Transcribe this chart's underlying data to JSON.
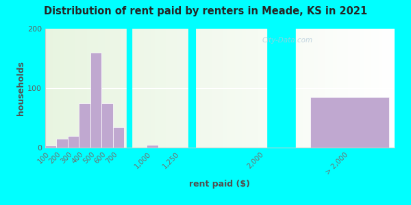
{
  "title": "Distribution of rent paid by renters in Meade, KS in 2021",
  "xlabel": "rent paid ($)",
  "ylabel": "households",
  "background_outer": "#00FFFF",
  "bar_color": "#c0a8d0",
  "ylim": [
    0,
    200
  ],
  "yticks": [
    0,
    100,
    200
  ],
  "watermark": "City-Data.com",
  "tick_labels": [
    "100",
    "200",
    "300",
    "400",
    "500",
    "600",
    "700",
    "1,000",
    "1,250",
    "2,000",
    "> 2,000"
  ],
  "bar_values": [
    3,
    15,
    20,
    75,
    160,
    75,
    35,
    5,
    0,
    0,
    85
  ],
  "x_coords": [
    100,
    200,
    300,
    400,
    500,
    600,
    700,
    1000,
    1250,
    2000,
    2750
  ],
  "bar_widths": [
    100,
    100,
    100,
    100,
    100,
    100,
    100,
    100,
    100,
    100,
    700
  ]
}
